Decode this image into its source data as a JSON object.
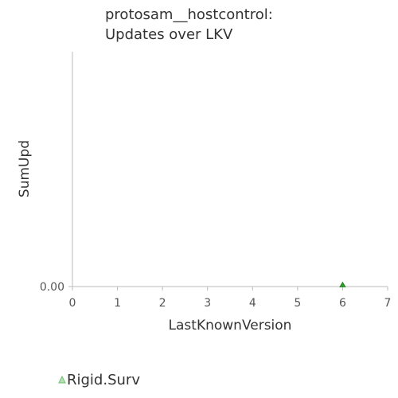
{
  "chart_data": {
    "type": "scatter",
    "title": [
      "protosam__hostcontrol:",
      "Updates over LKV"
    ],
    "xlabel": "LastKnownVersion",
    "ylabel": "SumUpd",
    "xlim": [
      0,
      7
    ],
    "xticks": [
      "0",
      "1",
      "2",
      "3",
      "4",
      "5",
      "6",
      "7"
    ],
    "yticks": [
      "0.00"
    ],
    "ylim": [
      0,
      1
    ],
    "grid": false,
    "legend_position": "bottom-left",
    "series": [
      {
        "name": "Rigid.Surv",
        "marker": "triangle",
        "color": "#2ca02c",
        "points": [
          {
            "x": 6,
            "y": 0
          }
        ]
      }
    ]
  }
}
